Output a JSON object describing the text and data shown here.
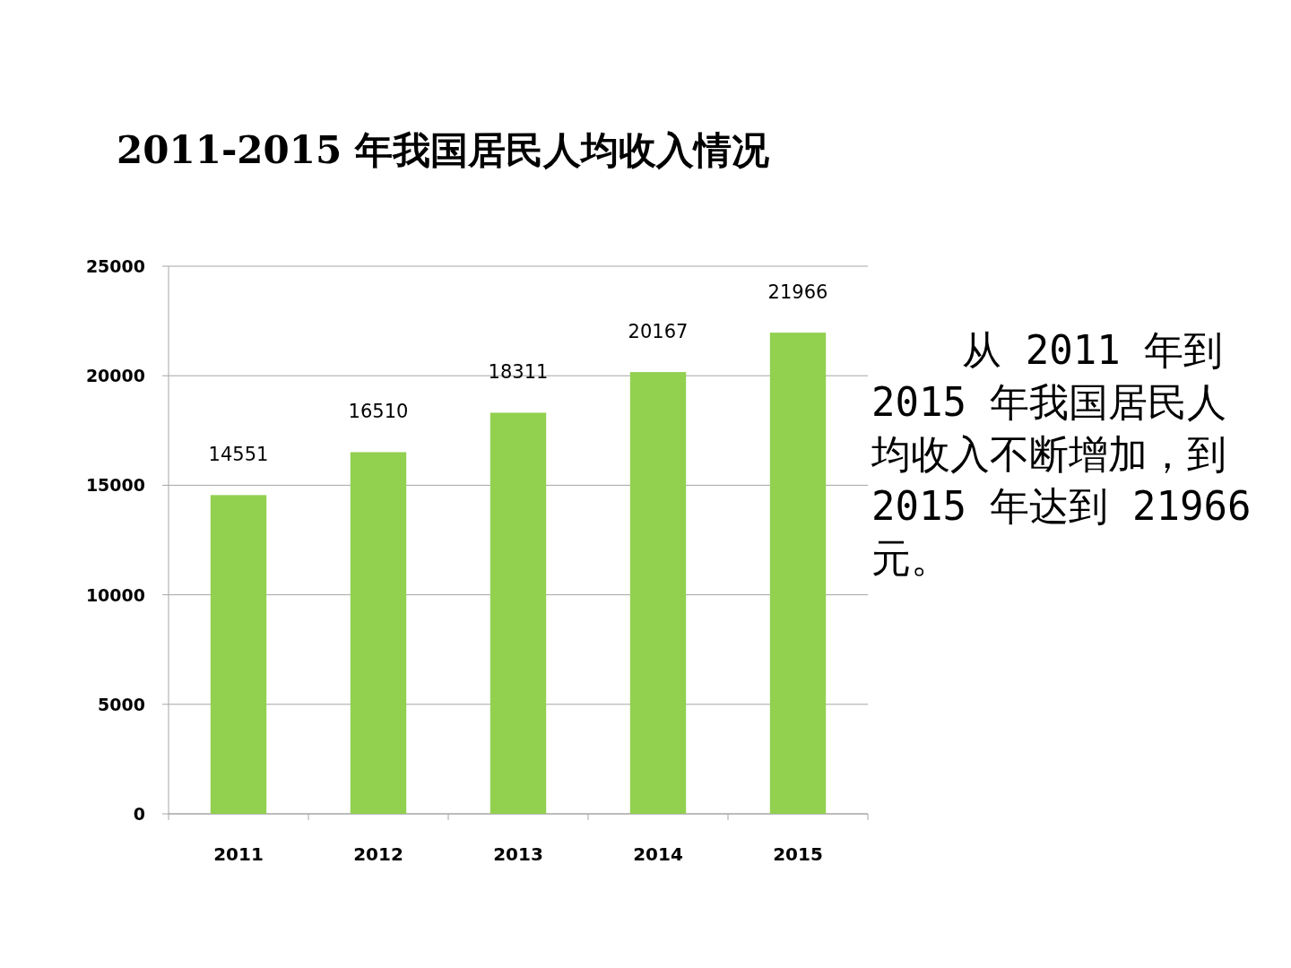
{
  "chart_data": {
    "type": "bar",
    "title": "2011-2015 年我国居民人均收入情况",
    "categories": [
      "2011",
      "2012",
      "2013",
      "2014",
      "2015"
    ],
    "values": [
      14551,
      16510,
      18311,
      20167,
      21966
    ],
    "color": "#92d050",
    "ylim": [
      0,
      25000
    ],
    "yticks": [
      0,
      5000,
      10000,
      15000,
      20000,
      25000
    ],
    "grid": "y",
    "data_labels": true,
    "annotations": [
      "从 2011 年到 2015 年我国居民人均收入不断增加，到 2015 年达到 21966 元。"
    ]
  }
}
